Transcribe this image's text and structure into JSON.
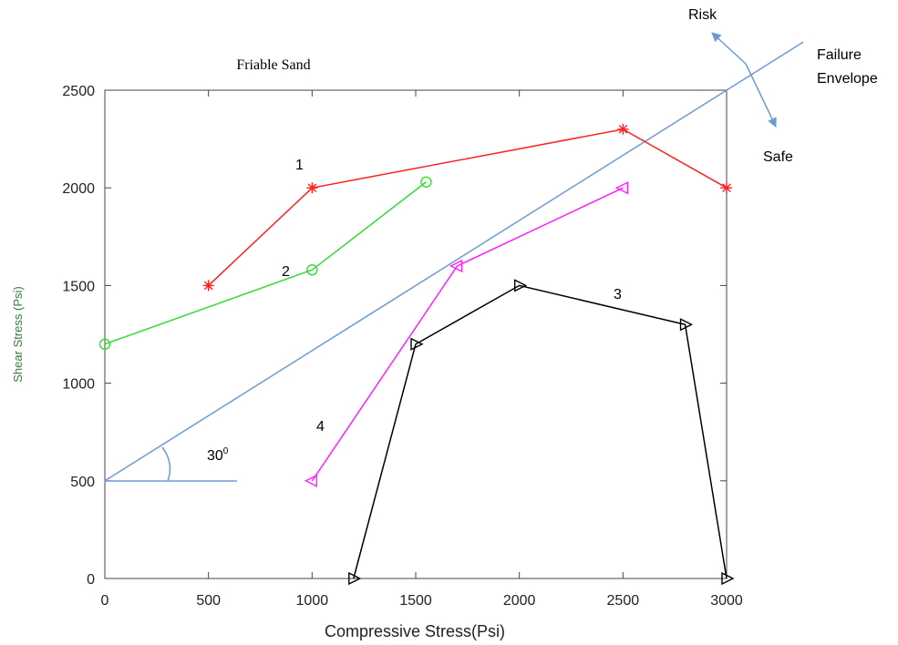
{
  "chart_data": {
    "type": "line",
    "title": "Friable Sand",
    "xlabel": "Compressive Stress(Psi)",
    "ylabel": "Shear Stress (Psi)",
    "xlim": [
      0,
      3000
    ],
    "ylim": [
      0,
      2500
    ],
    "xticks": [
      0,
      500,
      1000,
      1500,
      2000,
      2500,
      3000
    ],
    "xtick_labels": [
      "0",
      "500",
      "1000",
      "1500",
      "2000",
      "2500",
      "3000"
    ],
    "yticks": [
      0,
      500,
      1000,
      1500,
      2000,
      2500
    ],
    "ytick_labels": [
      "0",
      "500",
      "1000",
      "1500",
      "2000",
      "2500"
    ],
    "grid": false,
    "series": [
      {
        "name": "1",
        "color": "#ff2020",
        "marker": "asterisk",
        "x": [
          500,
          1000,
          2500,
          3000
        ],
        "y": [
          1500,
          2000,
          2300,
          2000
        ]
      },
      {
        "name": "2",
        "color": "#33dd33",
        "marker": "circle",
        "x": [
          0,
          1000,
          1550
        ],
        "y": [
          1200,
          1580,
          2030
        ]
      },
      {
        "name": "3",
        "color": "#000000",
        "marker": "triangle-right",
        "x": [
          1200,
          1500,
          2000,
          2800,
          3000
        ],
        "y": [
          0,
          1200,
          1500,
          1300,
          0
        ]
      },
      {
        "name": "4",
        "color": "#ff22ff",
        "marker": "triangle-left",
        "x": [
          1000,
          1700,
          2500
        ],
        "y": [
          500,
          1600,
          2000
        ]
      }
    ],
    "envelope": {
      "name": "Failure Envelope",
      "color": "#6c9bd2",
      "x": [
        0,
        3000
      ],
      "y": [
        500,
        2500
      ]
    },
    "annotations": {
      "angle": "30",
      "angle_sup": "0",
      "failure_envelope": [
        "Failure",
        "Envelope"
      ],
      "risk": "Risk",
      "safe": "Safe"
    }
  }
}
